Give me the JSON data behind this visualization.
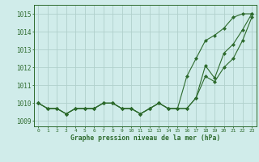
{
  "x": [
    0,
    1,
    2,
    3,
    4,
    5,
    6,
    7,
    8,
    9,
    10,
    11,
    12,
    13,
    14,
    15,
    16,
    17,
    18,
    19,
    20,
    21,
    22,
    23
  ],
  "line_actual": [
    1010.0,
    1009.7,
    1009.7,
    1009.4,
    1009.7,
    1009.7,
    1009.7,
    1010.0,
    1010.0,
    1009.7,
    1009.7,
    1009.4,
    1009.7,
    1010.0,
    1009.7,
    1009.7,
    1009.7,
    1010.3,
    1012.1,
    1011.4,
    1012.8,
    1013.3,
    1014.1,
    1015.0
  ],
  "line_max": [
    1010.0,
    1009.7,
    1009.7,
    1009.4,
    1009.7,
    1009.7,
    1009.7,
    1010.0,
    1010.0,
    1009.7,
    1009.7,
    1009.4,
    1009.7,
    1010.0,
    1009.7,
    1009.7,
    1011.5,
    1012.5,
    1013.5,
    1013.8,
    1014.2,
    1014.8,
    1015.0,
    1015.0
  ],
  "line_min": [
    1010.0,
    1009.7,
    1009.7,
    1009.4,
    1009.7,
    1009.7,
    1009.7,
    1010.0,
    1010.0,
    1009.7,
    1009.7,
    1009.4,
    1009.7,
    1010.0,
    1009.7,
    1009.7,
    1009.7,
    1010.3,
    1011.5,
    1011.2,
    1012.0,
    1012.5,
    1013.5,
    1014.8
  ],
  "line_color": "#2d6a2d",
  "bg_color": "#d0ecea",
  "grid_color": "#b0d0cc",
  "title": "Graphe pression niveau de la mer (hPa)",
  "yticks": [
    1009,
    1010,
    1011,
    1012,
    1013,
    1014,
    1015
  ],
  "ylim": [
    1008.7,
    1015.5
  ],
  "xlim": [
    -0.5,
    23.5
  ]
}
